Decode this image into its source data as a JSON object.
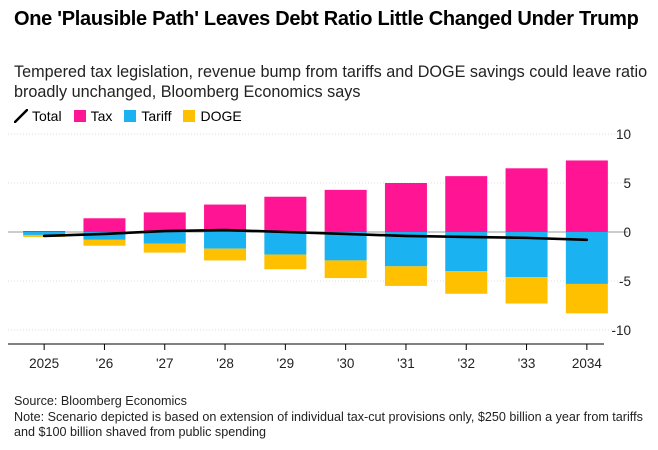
{
  "title": "One 'Plausible Path' Leaves Debt Ratio Little Changed Under Trump",
  "subtitle": "Tempered tax legislation, revenue bump from tariffs and DOGE savings could leave ratio broadly unchanged, Bloomberg Economics says",
  "legend": [
    {
      "label": "Total",
      "color": "#000000",
      "kind": "line"
    },
    {
      "label": "Tax",
      "color": "#ff1493",
      "kind": "box"
    },
    {
      "label": "Tariff",
      "color": "#1ab2f0",
      "kind": "box"
    },
    {
      "label": "DOGE",
      "color": "#ffc000",
      "kind": "box"
    }
  ],
  "source": "Source: Bloomberg Economics",
  "note": "Note: Scenario depicted is based on extension of individual tax-cut provisions only, $250 billion a year from tariffs and $100 billion shaved from public spending",
  "chart_data": {
    "type": "bar",
    "stacked": true,
    "categories": [
      "2025",
      "'26",
      "'27",
      "'28",
      "'29",
      "'30",
      "'31",
      "'32",
      "'33",
      "2034"
    ],
    "series": [
      {
        "name": "Tax",
        "color": "#ff1493",
        "values": [
          0.1,
          1.4,
          2.0,
          2.8,
          3.6,
          4.3,
          5.0,
          5.7,
          6.5,
          7.3
        ]
      },
      {
        "name": "Tariff",
        "color": "#1ab2f0",
        "values": [
          -0.3,
          -0.8,
          -1.2,
          -1.7,
          -2.3,
          -2.9,
          -3.5,
          -4.0,
          -4.6,
          -5.3
        ]
      },
      {
        "name": "DOGE",
        "color": "#ffc000",
        "values": [
          -0.2,
          -0.6,
          -0.9,
          -1.2,
          -1.5,
          -1.8,
          -2.0,
          -2.3,
          -2.7,
          -3.0
        ]
      }
    ],
    "line": {
      "name": "Total",
      "color": "#000000",
      "values": [
        -0.4,
        -0.2,
        0.1,
        0.2,
        0.0,
        -0.2,
        -0.4,
        -0.5,
        -0.6,
        -0.8
      ]
    },
    "ylim": [
      -10,
      10
    ],
    "yticks": [
      10,
      5,
      0,
      -5,
      -10
    ],
    "xlabel": "",
    "ylabel": ""
  }
}
